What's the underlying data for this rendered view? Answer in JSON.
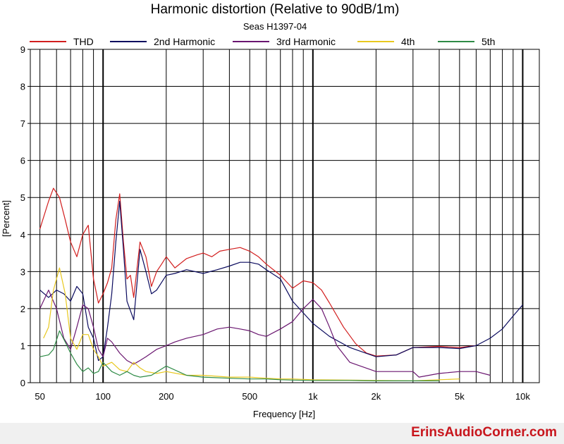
{
  "chart_data": {
    "type": "line",
    "title": "Harmonic distortion (Relative to 90dB/1m)",
    "subtitle": "Seas H1397-04",
    "xlabel": "Frequency [Hz]",
    "ylabel": "[Percent]",
    "xscale": "log",
    "xlim": [
      45,
      12000
    ],
    "ylim": [
      0,
      9
    ],
    "x_ticks": [
      {
        "value": 50,
        "label": "50"
      },
      {
        "value": 100,
        "label": "100"
      },
      {
        "value": 200,
        "label": "200"
      },
      {
        "value": 500,
        "label": "500"
      },
      {
        "value": 1000,
        "label": "1k"
      },
      {
        "value": 2000,
        "label": "2k"
      },
      {
        "value": 5000,
        "label": "5k"
      },
      {
        "value": 10000,
        "label": "10k"
      }
    ],
    "y_ticks": [
      0,
      1,
      2,
      3,
      4,
      5,
      6,
      7,
      8,
      9
    ],
    "grid": true,
    "legend_position": "top",
    "series": [
      {
        "name": "THD",
        "color": "#d21e1e",
        "x": [
          50,
          55,
          58,
          62,
          66,
          70,
          75,
          80,
          85,
          90,
          95,
          100,
          105,
          110,
          115,
          120,
          125,
          130,
          135,
          140,
          150,
          160,
          170,
          180,
          190,
          200,
          220,
          250,
          280,
          300,
          330,
          360,
          400,
          450,
          500,
          550,
          600,
          700,
          800,
          900,
          1000,
          1100,
          1200,
          1400,
          1600,
          1800,
          2000,
          2500,
          3000,
          4000,
          5000,
          6000
        ],
        "y": [
          4.15,
          4.9,
          5.25,
          5.0,
          4.4,
          3.8,
          3.4,
          4.0,
          4.25,
          2.8,
          2.15,
          2.4,
          2.7,
          3.1,
          4.4,
          5.1,
          3.8,
          2.8,
          2.9,
          2.3,
          3.8,
          3.4,
          2.6,
          3.0,
          3.2,
          3.4,
          3.1,
          3.35,
          3.45,
          3.5,
          3.4,
          3.55,
          3.6,
          3.65,
          3.55,
          3.4,
          3.2,
          2.9,
          2.55,
          2.75,
          2.7,
          2.5,
          2.15,
          1.5,
          1.05,
          0.8,
          0.72,
          0.75,
          0.95,
          0.98,
          0.95,
          1.0
        ]
      },
      {
        "name": "2nd Harmonic",
        "color": "#0a0a5e",
        "x": [
          50,
          55,
          60,
          65,
          70,
          75,
          80,
          85,
          90,
          95,
          100,
          105,
          110,
          115,
          120,
          125,
          130,
          140,
          150,
          160,
          170,
          180,
          200,
          220,
          250,
          300,
          350,
          400,
          450,
          500,
          550,
          600,
          700,
          800,
          1000,
          1200,
          1500,
          2000,
          2500,
          3000,
          4000,
          5000,
          6000,
          7000,
          8000,
          9000,
          10000
        ],
        "y": [
          2.5,
          2.3,
          2.5,
          2.4,
          2.2,
          2.6,
          2.4,
          1.5,
          1.2,
          0.6,
          0.7,
          1.5,
          2.4,
          3.8,
          4.9,
          3.6,
          2.2,
          1.7,
          3.6,
          3.0,
          2.4,
          2.5,
          2.9,
          2.95,
          3.05,
          2.95,
          3.05,
          3.15,
          3.25,
          3.25,
          3.2,
          3.05,
          2.8,
          2.2,
          1.6,
          1.25,
          0.95,
          0.7,
          0.75,
          0.95,
          0.95,
          0.92,
          1.0,
          1.2,
          1.45,
          1.8,
          2.1
        ]
      },
      {
        "name": "3rd Harmonic",
        "color": "#6a1670",
        "x": [
          50,
          55,
          60,
          65,
          70,
          75,
          80,
          85,
          90,
          95,
          100,
          105,
          110,
          120,
          130,
          140,
          150,
          160,
          180,
          200,
          220,
          250,
          300,
          350,
          400,
          450,
          500,
          550,
          600,
          700,
          800,
          900,
          1000,
          1100,
          1200,
          1300,
          1500,
          2000,
          2500,
          3000,
          3200,
          4000,
          5000,
          6000,
          7000
        ],
        "y": [
          2.0,
          2.5,
          2.0,
          1.2,
          0.9,
          1.5,
          2.1,
          2.0,
          1.5,
          0.9,
          0.7,
          1.2,
          1.1,
          0.8,
          0.6,
          0.5,
          0.6,
          0.7,
          0.9,
          1.0,
          1.1,
          1.2,
          1.3,
          1.45,
          1.5,
          1.45,
          1.4,
          1.3,
          1.25,
          1.45,
          1.65,
          2.0,
          2.25,
          2.0,
          1.5,
          1.0,
          0.55,
          0.3,
          0.3,
          0.3,
          0.15,
          0.25,
          0.3,
          0.3,
          0.2
        ]
      },
      {
        "name": "4th",
        "color": "#e8c81e",
        "x": [
          52,
          55,
          58,
          62,
          66,
          70,
          75,
          80,
          85,
          90,
          95,
          100,
          110,
          120,
          130,
          140,
          150,
          160,
          180,
          200,
          250,
          300,
          400,
          500,
          600,
          700,
          800,
          1000,
          1500,
          2000,
          3000,
          4000,
          5000
        ],
        "y": [
          1.2,
          1.5,
          2.5,
          3.1,
          2.4,
          1.2,
          0.9,
          1.3,
          1.3,
          0.9,
          0.7,
          0.45,
          0.55,
          0.35,
          0.3,
          0.55,
          0.4,
          0.3,
          0.25,
          0.3,
          0.2,
          0.2,
          0.15,
          0.15,
          0.12,
          0.1,
          0.1,
          0.08,
          0.07,
          0.06,
          0.05,
          0.08,
          0.1
        ]
      },
      {
        "name": "5th",
        "color": "#2e8b46",
        "x": [
          50,
          55,
          58,
          62,
          66,
          70,
          75,
          80,
          85,
          90,
          95,
          100,
          110,
          120,
          130,
          140,
          150,
          170,
          200,
          250,
          300,
          400,
          500,
          600,
          700,
          800,
          1000,
          1500,
          2000,
          3000,
          4000
        ],
        "y": [
          0.7,
          0.75,
          0.9,
          1.4,
          1.1,
          0.8,
          0.5,
          0.3,
          0.4,
          0.25,
          0.3,
          0.55,
          0.3,
          0.2,
          0.3,
          0.2,
          0.15,
          0.2,
          0.45,
          0.2,
          0.15,
          0.12,
          0.1,
          0.1,
          0.08,
          0.07,
          0.06,
          0.06,
          0.05,
          0.05,
          0.05
        ]
      }
    ]
  },
  "footer": {
    "brand": "ErinsAudioCorner.com"
  }
}
